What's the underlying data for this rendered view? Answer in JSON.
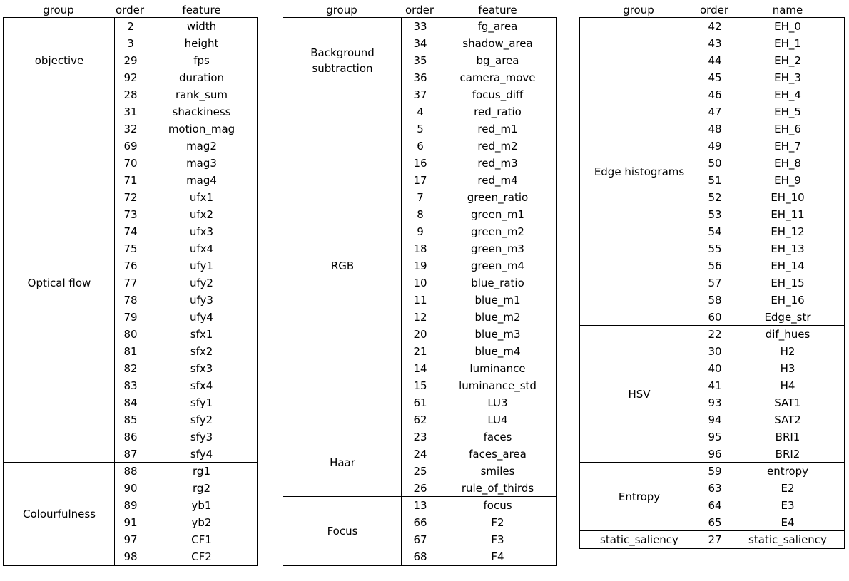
{
  "tables": [
    {
      "headers": {
        "group": "group",
        "order": "order",
        "name": "feature"
      },
      "groups": [
        {
          "label": "objective",
          "rows": [
            [
              "2",
              "width"
            ],
            [
              "3",
              "height"
            ],
            [
              "29",
              "fps"
            ],
            [
              "92",
              "duration"
            ],
            [
              "28",
              "rank_sum"
            ]
          ]
        },
        {
          "label": "Optical flow",
          "rows": [
            [
              "31",
              "shackiness"
            ],
            [
              "32",
              "motion_mag"
            ],
            [
              "69",
              "mag2"
            ],
            [
              "70",
              "mag3"
            ],
            [
              "71",
              "mag4"
            ],
            [
              "72",
              "ufx1"
            ],
            [
              "73",
              "ufx2"
            ],
            [
              "74",
              "ufx3"
            ],
            [
              "75",
              "ufx4"
            ],
            [
              "76",
              "ufy1"
            ],
            [
              "77",
              "ufy2"
            ],
            [
              "78",
              "ufy3"
            ],
            [
              "79",
              "ufy4"
            ],
            [
              "80",
              "sfx1"
            ],
            [
              "81",
              "sfx2"
            ],
            [
              "82",
              "sfx3"
            ],
            [
              "83",
              "sfx4"
            ],
            [
              "84",
              "sfy1"
            ],
            [
              "85",
              "sfy2"
            ],
            [
              "86",
              "sfy3"
            ],
            [
              "87",
              "sfy4"
            ]
          ]
        },
        {
          "label": "Colourfulness",
          "rows": [
            [
              "88",
              "rg1"
            ],
            [
              "90",
              "rg2"
            ],
            [
              "89",
              "yb1"
            ],
            [
              "91",
              "yb2"
            ],
            [
              "97",
              "CF1"
            ],
            [
              "98",
              "CF2"
            ]
          ]
        }
      ]
    },
    {
      "headers": {
        "group": "group",
        "order": "order",
        "name": "feature"
      },
      "groups": [
        {
          "label": "Background subtraction",
          "rows": [
            [
              "33",
              "fg_area"
            ],
            [
              "34",
              "shadow_area"
            ],
            [
              "35",
              "bg_area"
            ],
            [
              "36",
              "camera_move"
            ],
            [
              "37",
              "focus_diff"
            ]
          ]
        },
        {
          "label": "RGB",
          "rows": [
            [
              "4",
              "red_ratio"
            ],
            [
              "5",
              "red_m1"
            ],
            [
              "6",
              "red_m2"
            ],
            [
              "16",
              "red_m3"
            ],
            [
              "17",
              "red_m4"
            ],
            [
              "7",
              "green_ratio"
            ],
            [
              "8",
              "green_m1"
            ],
            [
              "9",
              "green_m2"
            ],
            [
              "18",
              "green_m3"
            ],
            [
              "19",
              "green_m4"
            ],
            [
              "10",
              "blue_ratio"
            ],
            [
              "11",
              "blue_m1"
            ],
            [
              "12",
              "blue_m2"
            ],
            [
              "20",
              "blue_m3"
            ],
            [
              "21",
              "blue_m4"
            ],
            [
              "14",
              "luminance"
            ],
            [
              "15",
              "luminance_std"
            ],
            [
              "61",
              "LU3"
            ],
            [
              "62",
              "LU4"
            ]
          ]
        },
        {
          "label": "Haar",
          "rows": [
            [
              "23",
              "faces"
            ],
            [
              "24",
              "faces_area"
            ],
            [
              "25",
              "smiles"
            ],
            [
              "26",
              "rule_of_thirds"
            ]
          ]
        },
        {
          "label": "Focus",
          "rows": [
            [
              "13",
              "focus"
            ],
            [
              "66",
              "F2"
            ],
            [
              "67",
              "F3"
            ],
            [
              "68",
              "F4"
            ]
          ]
        }
      ]
    },
    {
      "headers": {
        "group": "group",
        "order": "order",
        "name": "name"
      },
      "groups": [
        {
          "label": "Edge histograms",
          "rows": [
            [
              "42",
              "EH_0"
            ],
            [
              "43",
              "EH_1"
            ],
            [
              "44",
              "EH_2"
            ],
            [
              "45",
              "EH_3"
            ],
            [
              "46",
              "EH_4"
            ],
            [
              "47",
              "EH_5"
            ],
            [
              "48",
              "EH_6"
            ],
            [
              "49",
              "EH_7"
            ],
            [
              "50",
              "EH_8"
            ],
            [
              "51",
              "EH_9"
            ],
            [
              "52",
              "EH_10"
            ],
            [
              "53",
              "EH_11"
            ],
            [
              "54",
              "EH_12"
            ],
            [
              "55",
              "EH_13"
            ],
            [
              "56",
              "EH_14"
            ],
            [
              "57",
              "EH_15"
            ],
            [
              "58",
              "EH_16"
            ],
            [
              "60",
              "Edge_str"
            ]
          ]
        },
        {
          "label": "HSV",
          "rows": [
            [
              "22",
              "dif_hues"
            ],
            [
              "30",
              "H2"
            ],
            [
              "40",
              "H3"
            ],
            [
              "41",
              "H4"
            ],
            [
              "93",
              "SAT1"
            ],
            [
              "94",
              "SAT2"
            ],
            [
              "95",
              "BRI1"
            ],
            [
              "96",
              "BRI2"
            ]
          ]
        },
        {
          "label": "Entropy",
          "rows": [
            [
              "59",
              "entropy"
            ],
            [
              "63",
              "E2"
            ],
            [
              "64",
              "E3"
            ],
            [
              "65",
              "E4"
            ]
          ]
        },
        {
          "label": "static_saliency",
          "rows": [
            [
              "27",
              "static_saliency"
            ]
          ]
        }
      ]
    }
  ]
}
